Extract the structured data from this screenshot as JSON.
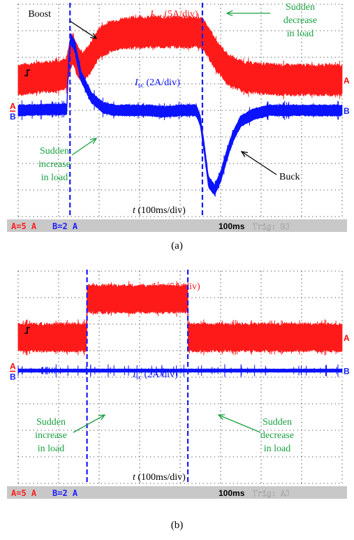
{
  "chart_data": [
    {
      "type": "line",
      "caption": "(a)",
      "x_axis_label": {
        "var": "t",
        "unit": " (100ms/div)"
      },
      "timebase": "100ms",
      "trigger_text": "Trig: BJ",
      "channel_settings": [
        {
          "label": "A=5 A",
          "color": "#ff2020"
        },
        {
          "label": "B=2 A",
          "color": "#2020ff"
        }
      ],
      "series": [
        {
          "name": "I_bat",
          "label": {
            "sym": "I",
            "sub": "bat",
            "unit": " (5A/div)"
          },
          "channel": "A",
          "color": "#ff1a1a",
          "band": 1.1,
          "x": [
            0,
            1.2,
            1.28,
            1.35,
            1.45,
            1.6,
            1.8,
            2.0,
            2.3,
            2.6,
            3.0,
            3.5,
            4.0,
            4.4,
            4.55,
            4.7,
            4.9,
            5.2,
            5.6,
            6.0,
            6.5,
            7.0,
            8.0
          ],
          "y": [
            5.15,
            5.35,
            6.1,
            6.35,
            5.9,
            5.6,
            6.0,
            6.55,
            6.8,
            6.9,
            6.95,
            6.95,
            6.95,
            6.95,
            6.9,
            6.55,
            6.05,
            5.5,
            5.25,
            5.2,
            5.15,
            5.15,
            5.15
          ]
        },
        {
          "name": "I_sc",
          "label": {
            "sym": "I",
            "sub": "sc",
            "unit": " (2A/div)"
          },
          "channel": "B",
          "color": "#0a12ff",
          "band": 0.4,
          "x": [
            0,
            1.2,
            1.25,
            1.3,
            1.4,
            1.55,
            1.8,
            2.1,
            2.4,
            2.8,
            3.2,
            3.6,
            4.0,
            4.4,
            4.5,
            4.6,
            4.7,
            4.85,
            5.0,
            5.15,
            5.3,
            5.5,
            5.8,
            6.2,
            6.6,
            7.0,
            8.0
          ],
          "y": [
            4.0,
            4.05,
            5.9,
            6.7,
            6.4,
            5.3,
            4.5,
            4.1,
            4.0,
            4.0,
            4.0,
            3.95,
            4.0,
            4.0,
            3.6,
            2.5,
            1.3,
            1.0,
            1.5,
            2.3,
            3.0,
            3.6,
            3.85,
            4.0,
            4.0,
            4.0,
            4.0
          ]
        }
      ],
      "event_lines_x": [
        1.28,
        4.55
      ],
      "annotations": [
        {
          "text": [
            "Boost"
          ],
          "color": "#000000"
        },
        {
          "text": [
            "Sudden",
            "decrease",
            "in load"
          ],
          "color": "#18a040"
        },
        {
          "text": [
            "Sudden",
            "increase",
            "in load"
          ],
          "color": "#18a040"
        },
        {
          "text": [
            "Buck"
          ],
          "color": "#000000"
        }
      ]
    },
    {
      "type": "line",
      "caption": "(b)",
      "x_axis_label": {
        "var": "t",
        "unit": " (100ms/div)"
      },
      "timebase": "100ms",
      "trigger_text": "Trig: AJ",
      "channel_settings": [
        {
          "label": "A=5 A",
          "color": "#ff2020"
        },
        {
          "label": "B=2 A",
          "color": "#2020ff"
        }
      ],
      "series": [
        {
          "name": "I_bat",
          "label": {
            "sym": "I",
            "sub": "bat",
            "unit": " (5A/div)"
          },
          "channel": "A",
          "color": "#ff1a1a",
          "band": 1.0,
          "x": [
            0,
            1.69,
            1.7,
            4.19,
            4.2,
            8.0
          ],
          "y": [
            5.5,
            5.5,
            6.95,
            6.95,
            5.5,
            5.5
          ]
        },
        {
          "name": "I_sc",
          "label": {
            "sym": "I",
            "sub": "sc",
            "unit": " (2A/div)"
          },
          "channel": "B",
          "color": "#0a12ff",
          "band": 0.12,
          "x": [
            0,
            8.0
          ],
          "y": [
            4.25,
            4.25
          ]
        }
      ],
      "event_lines_x": [
        1.7,
        4.19
      ],
      "annotations": [
        {
          "text": [
            "Sudden",
            "increase",
            "in load"
          ],
          "color": "#18a040"
        },
        {
          "text": [
            "Sudden",
            "decrease",
            "in load"
          ],
          "color": "#18a040"
        }
      ]
    }
  ]
}
